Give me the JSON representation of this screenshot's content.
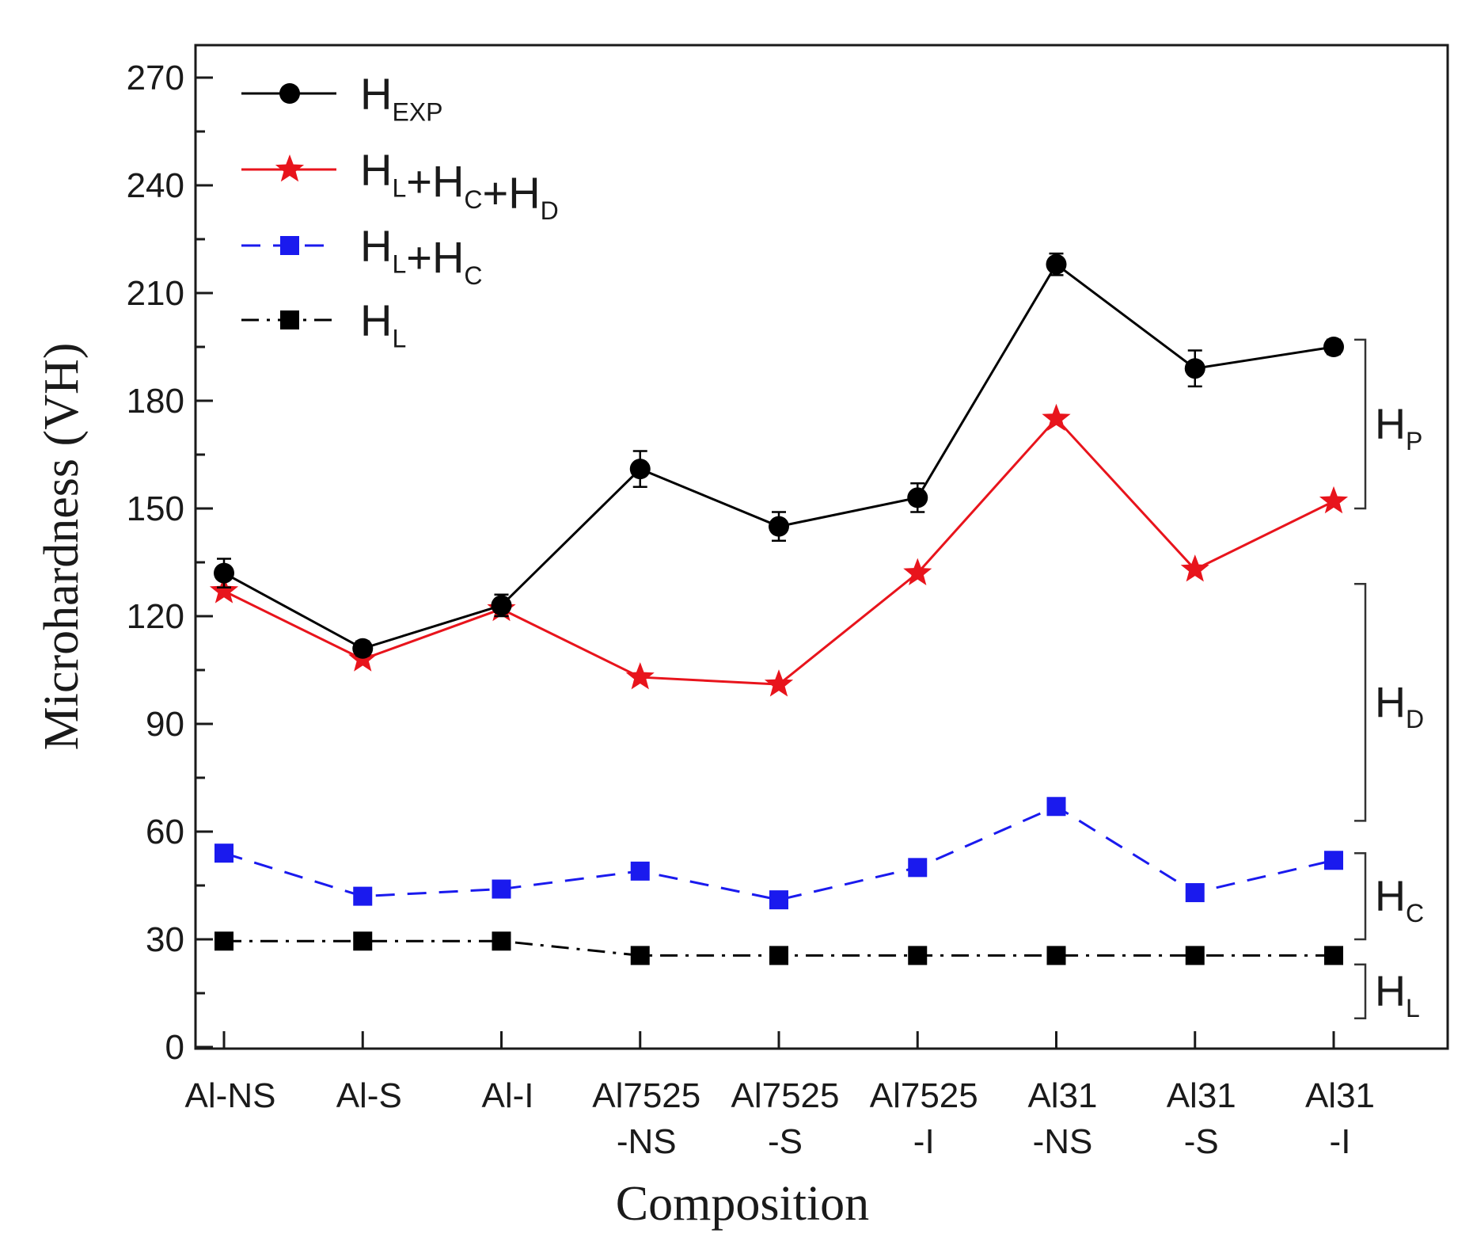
{
  "chart_data": {
    "type": "line",
    "xlabel": "Composition",
    "ylabel": "Microhardness (VH)",
    "ylim": [
      0,
      270
    ],
    "yticks": [
      0,
      30,
      60,
      90,
      120,
      150,
      180,
      210,
      240,
      270
    ],
    "categories": [
      [
        "Al-NS"
      ],
      [
        "Al-S"
      ],
      [
        "Al-I"
      ],
      [
        "Al7525",
        "-NS"
      ],
      [
        "Al7525",
        "-S"
      ],
      [
        "Al7525",
        "-I"
      ],
      [
        "Al31",
        "-NS"
      ],
      [
        "Al31",
        "-S"
      ],
      [
        "Al31",
        "-I"
      ]
    ],
    "series": [
      {
        "name": "H_EXP",
        "legend_main": "H",
        "legend_sub": "EXP",
        "color": "#000000",
        "marker": "circle",
        "dash": "solid",
        "values": [
          132,
          111,
          123,
          161,
          145,
          153,
          218,
          189,
          195
        ],
        "errors": [
          4,
          2,
          3,
          5,
          4,
          4,
          3,
          5,
          2
        ]
      },
      {
        "name": "H_L+H_C+H_D",
        "legend_parts": [
          [
            "H",
            "L"
          ],
          [
            "+H",
            "C"
          ],
          [
            "+H",
            "D"
          ]
        ],
        "color": "#e8141c",
        "marker": "star",
        "dash": "solid",
        "values": [
          127,
          108,
          122,
          103,
          101,
          132,
          175,
          133,
          152
        ]
      },
      {
        "name": "H_L+H_C",
        "legend_parts": [
          [
            "H",
            "L"
          ],
          [
            "+H",
            "C"
          ]
        ],
        "color": "#1a1aee",
        "marker": "square",
        "dash": "dashed",
        "values": [
          54,
          42,
          44,
          49,
          41,
          50,
          67,
          43,
          52
        ]
      },
      {
        "name": "H_L",
        "legend_parts": [
          [
            "H",
            "L"
          ]
        ],
        "color": "#000000",
        "marker": "square",
        "dash": "dashdot",
        "values": [
          29.5,
          29.5,
          29.5,
          25.5,
          25.5,
          25.5,
          25.5,
          25.5,
          25.5
        ]
      }
    ],
    "brackets": [
      {
        "main": "H",
        "sub": "P",
        "from": 150,
        "to": 197
      },
      {
        "main": "H",
        "sub": "D",
        "from": 63,
        "to": 129
      },
      {
        "main": "H",
        "sub": "C",
        "from": 30,
        "to": 54
      },
      {
        "main": "H",
        "sub": "L",
        "from": 8,
        "to": 23
      }
    ]
  }
}
